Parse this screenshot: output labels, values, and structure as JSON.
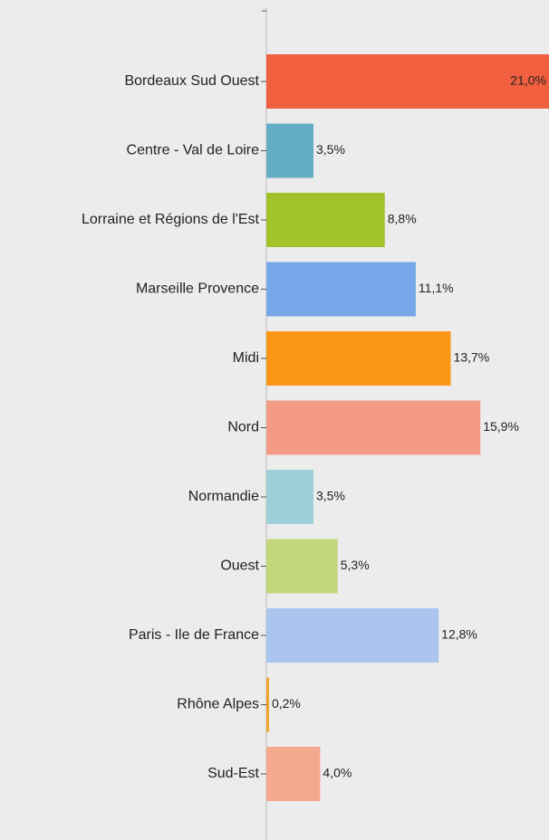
{
  "chart_data": {
    "type": "hbar",
    "categories": [
      "Bordeaux Sud Ouest",
      "Centre - Val de Loire",
      "Lorraine et Régions de l'Est",
      "Marseille Provence",
      "Midi",
      "Nord",
      "Normandie",
      "Ouest",
      "Paris - Ile de France",
      "Rhône Alpes",
      "Sud-Est"
    ],
    "values": [
      21.0,
      3.5,
      8.8,
      11.1,
      13.7,
      15.9,
      3.5,
      5.3,
      12.8,
      0.2,
      4.0
    ],
    "value_labels": [
      "21,0%",
      "3,5%",
      "8,8%",
      "11,1%",
      "13,7%",
      "15,9%",
      "3,5%",
      "5,3%",
      "12,8%",
      "0,2%",
      "4,0%"
    ],
    "colors": [
      "#f0603f",
      "#63adc4",
      "#a2c22c",
      "#77a7e8",
      "#fb9616",
      "#f39b84",
      "#9fcfd9",
      "#c3d77a",
      "#aac6ee",
      "#f0a528",
      "#f4a88e"
    ],
    "xlim": [
      0,
      21
    ]
  }
}
